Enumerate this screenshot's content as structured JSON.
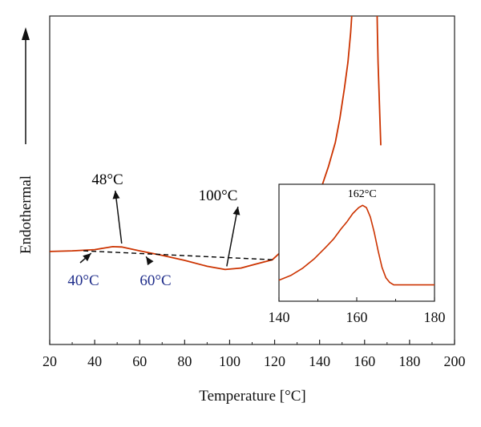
{
  "chart_data": [
    {
      "type": "line",
      "title": "",
      "xlabel": "Temperature [°C]",
      "ylabel": "Endothermal",
      "xlim": [
        20,
        200
      ],
      "xticks": [
        "20",
        "40",
        "60",
        "80",
        "100",
        "120",
        "140",
        "160",
        "180",
        "200"
      ],
      "y_ticks_shown": false,
      "grid": false,
      "legend": "none",
      "series": [
        {
          "color": "#cc3300",
          "x": [
            20,
            30,
            40,
            48,
            52,
            60,
            70,
            80,
            90,
            98,
            105,
            112,
            119,
            127,
            134,
            140,
            144,
            147,
            149,
            151,
            152.6,
            153.8,
            155,
            156.2,
            157.3,
            158.8,
            163.7,
            164.6,
            165,
            165.4,
            165.7,
            166,
            166.4,
            166.8,
            167.2
          ],
          "y": [
            1.1,
            1.2,
            1.4,
            1.9,
            1.85,
            1.2,
            0.45,
            -0.4,
            -1.4,
            -1.95,
            -1.7,
            -1.0,
            -0.3,
            2.5,
            6.5,
            11,
            15.5,
            19.5,
            23.5,
            28.5,
            33,
            38,
            45,
            53,
            62,
            70,
            70,
            62,
            53,
            45,
            38,
            33,
            28.5,
            23.5,
            19
          ]
        },
        {
          "style": "dashed",
          "color": "#000000",
          "x": [
            35,
            119
          ],
          "y": [
            1.2,
            -0.3
          ]
        }
      ],
      "annotations": [
        {
          "text": "48°C",
          "x": 52,
          "y": 1.9,
          "color": "#000000"
        },
        {
          "text": "100°C",
          "x": 98,
          "y": -1.95,
          "color": "#000000"
        },
        {
          "text": "40°C",
          "x": 37,
          "y": 1.2,
          "color": "#1f2d8a"
        },
        {
          "text": "60°C",
          "x": 60,
          "y": 0.9,
          "color": "#1f2d8a"
        }
      ]
    },
    {
      "type": "line",
      "title": "",
      "inset": true,
      "xlim": [
        140,
        180
      ],
      "ylim": [
        0,
        10
      ],
      "xticks": [
        "140",
        "160",
        "180"
      ],
      "series": [
        {
          "color": "#cc3300",
          "x": [
            140,
            143,
            146,
            149,
            152,
            154,
            156,
            157.5,
            159,
            160.5,
            161.5,
            162.5,
            163.5,
            164.5,
            165.5,
            166.5,
            167.5,
            168.5,
            169.5,
            171,
            174,
            180
          ],
          "y": [
            1.8,
            2.2,
            2.8,
            3.6,
            4.6,
            5.3,
            6.2,
            6.8,
            7.5,
            8.0,
            8.2,
            8.0,
            7.2,
            5.9,
            4.3,
            2.9,
            2.0,
            1.6,
            1.4,
            1.4,
            1.4,
            1.4
          ]
        }
      ],
      "annotations": [
        {
          "text": "162°C",
          "x": 162,
          "y": 8.2,
          "color": "#000000"
        }
      ]
    }
  ]
}
